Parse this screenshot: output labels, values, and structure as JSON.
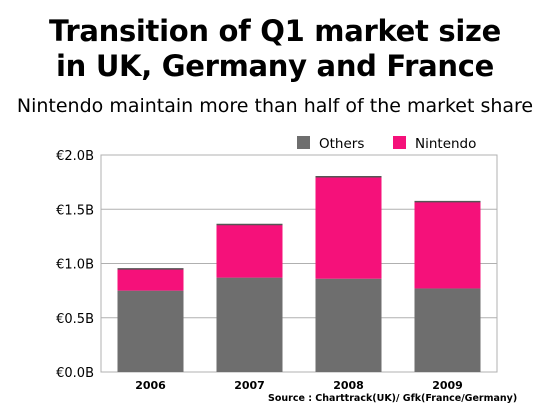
{
  "title_line1": "Transition of Q1 market size",
  "title_line2": "in UK, Germany and France",
  "subtitle": "Nintendo maintain more than half of the market share",
  "source": "Source : Charttrack(UK)/ Gfk(France/Germany)",
  "chart_data": {
    "type": "bar",
    "stacked": true,
    "categories": [
      "2006",
      "2007",
      "2008",
      "2009"
    ],
    "series": [
      {
        "name": "Others",
        "values": [
          0.75,
          0.87,
          0.86,
          0.77
        ],
        "color": "#6e6e6e"
      },
      {
        "name": "Nintendo",
        "values": [
          0.2,
          0.49,
          0.94,
          0.8
        ],
        "color": "#f5117a"
      }
    ],
    "ylim": [
      0,
      2.0
    ],
    "yticks": [
      0,
      0.5,
      1.0,
      1.5,
      2.0
    ],
    "ytick_labels": [
      "€0.0B",
      "€0.5B",
      "€1.0B",
      "€1.5B",
      "€2.0B"
    ],
    "grid": true,
    "legend": "top-right"
  }
}
